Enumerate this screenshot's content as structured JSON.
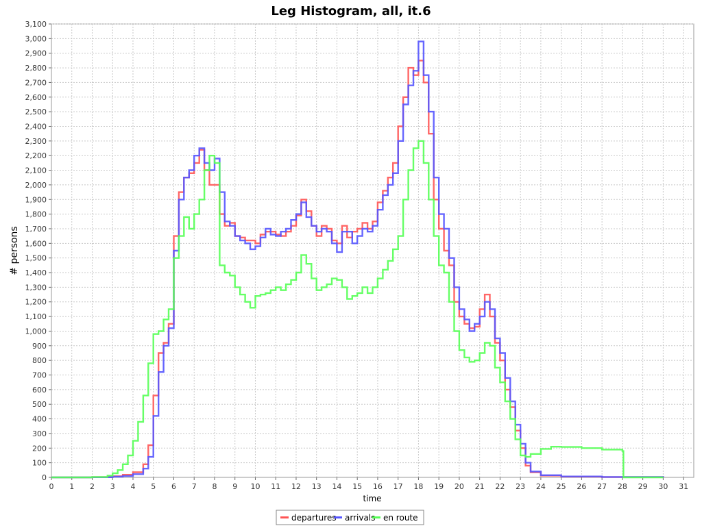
{
  "chart_data": {
    "type": "line",
    "title": "Leg Histogram, all, it.6",
    "xlabel": "time",
    "ylabel": "# persons",
    "xlim": [
      0,
      31.5
    ],
    "ylim": [
      0,
      3100
    ],
    "x_ticks": [
      0,
      1,
      2,
      3,
      4,
      5,
      6,
      7,
      8,
      9,
      10,
      11,
      12,
      13,
      14,
      15,
      16,
      17,
      18,
      19,
      20,
      21,
      22,
      23,
      24,
      25,
      26,
      27,
      28,
      29,
      30,
      31
    ],
    "y_ticks": [
      0,
      100,
      200,
      300,
      400,
      500,
      600,
      700,
      800,
      900,
      1000,
      1100,
      1200,
      1300,
      1400,
      1500,
      1600,
      1700,
      1800,
      1900,
      2000,
      2100,
      2200,
      2300,
      2400,
      2500,
      2600,
      2700,
      2800,
      2900,
      3000,
      3100
    ],
    "y_tick_labels": [
      "0",
      "100",
      "200",
      "300",
      "400",
      "500",
      "600",
      "700",
      "800",
      "900",
      "1,000",
      "1,100",
      "1,200",
      "1,300",
      "1,400",
      "1,500",
      "1,600",
      "1,700",
      "1,800",
      "1,900",
      "2,000",
      "2,100",
      "2,200",
      "2,300",
      "2,400",
      "2,500",
      "2,600",
      "2,700",
      "2,800",
      "2,900",
      "3,000",
      "3,100"
    ],
    "grid": true,
    "legend_position": "bottom-center",
    "series": [
      {
        "name": "departures",
        "color": "#ff5555",
        "points": [
          [
            0,
            0
          ],
          [
            2,
            2
          ],
          [
            3,
            8
          ],
          [
            3.5,
            18
          ],
          [
            4,
            35
          ],
          [
            4.5,
            90
          ],
          [
            4.75,
            220
          ],
          [
            5,
            560
          ],
          [
            5.25,
            850
          ],
          [
            5.5,
            920
          ],
          [
            5.75,
            1050
          ],
          [
            6,
            1650
          ],
          [
            6.25,
            1950
          ],
          [
            6.5,
            2050
          ],
          [
            6.75,
            2080
          ],
          [
            7,
            2150
          ],
          [
            7.25,
            2240
          ],
          [
            7.5,
            2100
          ],
          [
            7.75,
            2000
          ],
          [
            8,
            2000
          ],
          [
            8.25,
            1800
          ],
          [
            8.5,
            1720
          ],
          [
            8.75,
            1740
          ],
          [
            9,
            1650
          ],
          [
            9.25,
            1640
          ],
          [
            9.5,
            1620
          ],
          [
            9.75,
            1620
          ],
          [
            10,
            1600
          ],
          [
            10.25,
            1660
          ],
          [
            10.5,
            1680
          ],
          [
            10.75,
            1680
          ],
          [
            11,
            1660
          ],
          [
            11.25,
            1650
          ],
          [
            11.5,
            1680
          ],
          [
            11.75,
            1720
          ],
          [
            12,
            1790
          ],
          [
            12.25,
            1900
          ],
          [
            12.5,
            1820
          ],
          [
            12.75,
            1720
          ],
          [
            13,
            1650
          ],
          [
            13.25,
            1720
          ],
          [
            13.5,
            1700
          ],
          [
            13.75,
            1620
          ],
          [
            14,
            1600
          ],
          [
            14.25,
            1720
          ],
          [
            14.5,
            1640
          ],
          [
            14.75,
            1680
          ],
          [
            15,
            1700
          ],
          [
            15.25,
            1740
          ],
          [
            15.5,
            1700
          ],
          [
            15.75,
            1750
          ],
          [
            16,
            1880
          ],
          [
            16.25,
            1960
          ],
          [
            16.5,
            2050
          ],
          [
            16.75,
            2150
          ],
          [
            17,
            2400
          ],
          [
            17.25,
            2600
          ],
          [
            17.5,
            2800
          ],
          [
            17.75,
            2750
          ],
          [
            18,
            2850
          ],
          [
            18.25,
            2700
          ],
          [
            18.5,
            2350
          ],
          [
            18.75,
            1900
          ],
          [
            19,
            1700
          ],
          [
            19.25,
            1550
          ],
          [
            19.5,
            1450
          ],
          [
            19.75,
            1200
          ],
          [
            20,
            1100
          ],
          [
            20.25,
            1050
          ],
          [
            20.5,
            1020
          ],
          [
            20.75,
            1030
          ],
          [
            21,
            1150
          ],
          [
            21.25,
            1250
          ],
          [
            21.5,
            1100
          ],
          [
            21.75,
            920
          ],
          [
            22,
            800
          ],
          [
            22.25,
            600
          ],
          [
            22.5,
            480
          ],
          [
            22.75,
            320
          ],
          [
            23,
            200
          ],
          [
            23.25,
            80
          ],
          [
            23.5,
            35
          ],
          [
            24,
            12
          ],
          [
            25,
            5
          ],
          [
            27,
            2
          ],
          [
            30,
            0
          ]
        ]
      },
      {
        "name": "arrivals",
        "color": "#5555ff",
        "points": [
          [
            0,
            0
          ],
          [
            2,
            1
          ],
          [
            3,
            5
          ],
          [
            3.5,
            10
          ],
          [
            4,
            22
          ],
          [
            4.5,
            60
          ],
          [
            4.75,
            140
          ],
          [
            5,
            420
          ],
          [
            5.25,
            720
          ],
          [
            5.5,
            900
          ],
          [
            5.75,
            1020
          ],
          [
            6,
            1550
          ],
          [
            6.25,
            1900
          ],
          [
            6.5,
            2050
          ],
          [
            6.75,
            2100
          ],
          [
            7,
            2200
          ],
          [
            7.25,
            2250
          ],
          [
            7.5,
            2150
          ],
          [
            7.75,
            2100
          ],
          [
            8,
            2180
          ],
          [
            8.25,
            1950
          ],
          [
            8.5,
            1750
          ],
          [
            8.75,
            1720
          ],
          [
            9,
            1650
          ],
          [
            9.25,
            1620
          ],
          [
            9.5,
            1600
          ],
          [
            9.75,
            1560
          ],
          [
            10,
            1580
          ],
          [
            10.25,
            1640
          ],
          [
            10.5,
            1700
          ],
          [
            10.75,
            1660
          ],
          [
            11,
            1650
          ],
          [
            11.25,
            1680
          ],
          [
            11.5,
            1700
          ],
          [
            11.75,
            1760
          ],
          [
            12,
            1800
          ],
          [
            12.25,
            1880
          ],
          [
            12.5,
            1780
          ],
          [
            12.75,
            1720
          ],
          [
            13,
            1680
          ],
          [
            13.25,
            1700
          ],
          [
            13.5,
            1680
          ],
          [
            13.75,
            1600
          ],
          [
            14,
            1540
          ],
          [
            14.25,
            1680
          ],
          [
            14.5,
            1680
          ],
          [
            14.75,
            1600
          ],
          [
            15,
            1650
          ],
          [
            15.25,
            1700
          ],
          [
            15.5,
            1680
          ],
          [
            15.75,
            1720
          ],
          [
            16,
            1830
          ],
          [
            16.25,
            1930
          ],
          [
            16.5,
            2000
          ],
          [
            16.75,
            2080
          ],
          [
            17,
            2300
          ],
          [
            17.25,
            2550
          ],
          [
            17.5,
            2680
          ],
          [
            17.75,
            2780
          ],
          [
            18,
            2980
          ],
          [
            18.25,
            2750
          ],
          [
            18.5,
            2500
          ],
          [
            18.75,
            2050
          ],
          [
            19,
            1800
          ],
          [
            19.25,
            1700
          ],
          [
            19.5,
            1500
          ],
          [
            19.75,
            1300
          ],
          [
            20,
            1150
          ],
          [
            20.25,
            1080
          ],
          [
            20.5,
            1000
          ],
          [
            20.75,
            1050
          ],
          [
            21,
            1100
          ],
          [
            21.25,
            1200
          ],
          [
            21.5,
            1150
          ],
          [
            21.75,
            950
          ],
          [
            22,
            850
          ],
          [
            22.25,
            680
          ],
          [
            22.5,
            520
          ],
          [
            22.75,
            360
          ],
          [
            23,
            230
          ],
          [
            23.25,
            100
          ],
          [
            23.5,
            40
          ],
          [
            24,
            15
          ],
          [
            25,
            6
          ],
          [
            27,
            3
          ],
          [
            30,
            0
          ]
        ]
      },
      {
        "name": "en route",
        "color": "#55ff55",
        "points": [
          [
            0,
            0
          ],
          [
            2,
            3
          ],
          [
            2.75,
            12
          ],
          [
            3,
            28
          ],
          [
            3.25,
            50
          ],
          [
            3.5,
            90
          ],
          [
            3.75,
            150
          ],
          [
            4,
            250
          ],
          [
            4.25,
            380
          ],
          [
            4.5,
            560
          ],
          [
            4.75,
            780
          ],
          [
            5,
            980
          ],
          [
            5.25,
            1000
          ],
          [
            5.5,
            1080
          ],
          [
            5.75,
            1150
          ],
          [
            6,
            1500
          ],
          [
            6.25,
            1650
          ],
          [
            6.5,
            1780
          ],
          [
            6.75,
            1700
          ],
          [
            7,
            1800
          ],
          [
            7.25,
            1900
          ],
          [
            7.5,
            2100
          ],
          [
            7.75,
            2200
          ],
          [
            8,
            2150
          ],
          [
            8.25,
            1450
          ],
          [
            8.5,
            1400
          ],
          [
            8.75,
            1380
          ],
          [
            9,
            1300
          ],
          [
            9.25,
            1250
          ],
          [
            9.5,
            1200
          ],
          [
            9.75,
            1160
          ],
          [
            10,
            1240
          ],
          [
            10.25,
            1250
          ],
          [
            10.5,
            1260
          ],
          [
            10.75,
            1280
          ],
          [
            11,
            1300
          ],
          [
            11.25,
            1280
          ],
          [
            11.5,
            1320
          ],
          [
            11.75,
            1350
          ],
          [
            12,
            1400
          ],
          [
            12.25,
            1520
          ],
          [
            12.5,
            1460
          ],
          [
            12.75,
            1360
          ],
          [
            13,
            1280
          ],
          [
            13.25,
            1300
          ],
          [
            13.5,
            1320
          ],
          [
            13.75,
            1360
          ],
          [
            14,
            1350
          ],
          [
            14.25,
            1300
          ],
          [
            14.5,
            1220
          ],
          [
            14.75,
            1240
          ],
          [
            15,
            1260
          ],
          [
            15.25,
            1300
          ],
          [
            15.5,
            1260
          ],
          [
            15.75,
            1300
          ],
          [
            16,
            1360
          ],
          [
            16.25,
            1420
          ],
          [
            16.5,
            1480
          ],
          [
            16.75,
            1560
          ],
          [
            17,
            1650
          ],
          [
            17.25,
            1900
          ],
          [
            17.5,
            2100
          ],
          [
            17.75,
            2250
          ],
          [
            18,
            2300
          ],
          [
            18.25,
            2150
          ],
          [
            18.5,
            1900
          ],
          [
            18.75,
            1650
          ],
          [
            19,
            1450
          ],
          [
            19.25,
            1400
          ],
          [
            19.5,
            1200
          ],
          [
            19.75,
            1000
          ],
          [
            20,
            870
          ],
          [
            20.25,
            820
          ],
          [
            20.5,
            790
          ],
          [
            20.75,
            800
          ],
          [
            21,
            850
          ],
          [
            21.25,
            920
          ],
          [
            21.5,
            900
          ],
          [
            21.75,
            750
          ],
          [
            22,
            650
          ],
          [
            22.25,
            520
          ],
          [
            22.5,
            400
          ],
          [
            22.75,
            260
          ],
          [
            23,
            150
          ],
          [
            23.25,
            140
          ],
          [
            23.5,
            160
          ],
          [
            24,
            195
          ],
          [
            24.5,
            210
          ],
          [
            25,
            208
          ],
          [
            26,
            200
          ],
          [
            27,
            190
          ],
          [
            28,
            180
          ],
          [
            28.05,
            0
          ],
          [
            30,
            0
          ]
        ]
      }
    ]
  }
}
